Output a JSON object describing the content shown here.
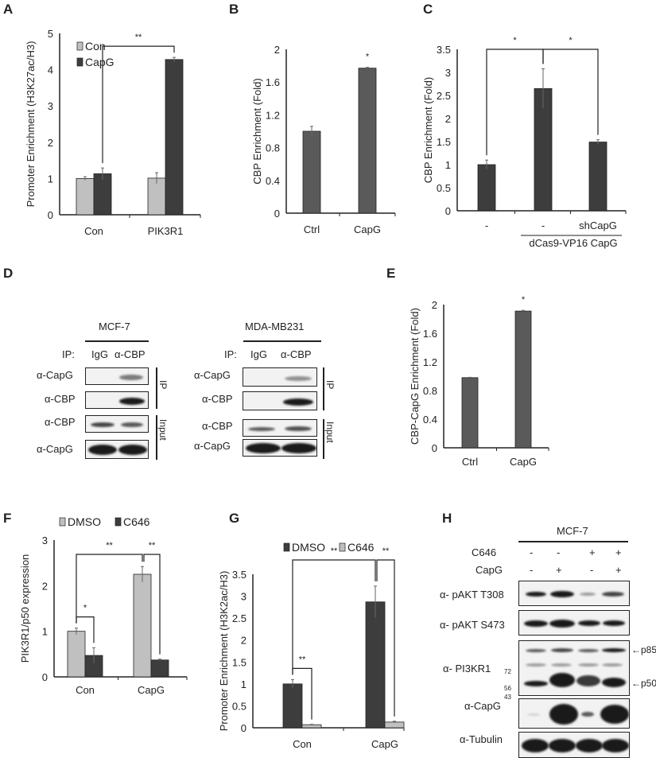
{
  "panel_labels": {
    "A": "A",
    "B": "B",
    "C": "C",
    "D": "D",
    "E": "E",
    "F": "F",
    "G": "G",
    "H": "H"
  },
  "chart_data": [
    {
      "id": "A",
      "type": "bar",
      "ylabel": "Promoter Enrichment (H3K27ac/H3)",
      "categories": [
        "Con",
        "PIK3R1"
      ],
      "ylim": [
        0,
        5
      ],
      "yticks": [
        "0",
        "1",
        "2",
        "3",
        "4",
        "5"
      ],
      "series": [
        {
          "name": "Con",
          "color": "#c0c0c0",
          "values": [
            1.0,
            1.01
          ],
          "errors": [
            0.05,
            0.15
          ]
        },
        {
          "name": "CapG",
          "color": "#3d3d3d",
          "values": [
            1.13,
            4.28
          ],
          "errors": [
            0.16,
            0.06
          ]
        }
      ],
      "legend": "top-left",
      "significance": [
        {
          "from": [
            1,
            0
          ],
          "to": [
            1,
            1
          ],
          "label": "**"
        }
      ]
    },
    {
      "id": "B",
      "type": "bar",
      "ylabel": "CBP Enrichment (Fold)",
      "categories": [
        "Ctrl",
        "CapG"
      ],
      "ylim": [
        0,
        2
      ],
      "yticks": [
        "0",
        "0.4",
        "0.8",
        "1.2",
        "1.6",
        "2"
      ],
      "series": [
        {
          "name": "CBP",
          "color": "#5a5a5a",
          "values": [
            1.0,
            1.77
          ],
          "errors": [
            0.06,
            0.01
          ]
        }
      ],
      "annotations": [
        {
          "bar": 1,
          "label": "*"
        }
      ]
    },
    {
      "id": "C",
      "type": "bar",
      "ylabel": "CBP Enrichment (Fold)",
      "categories": [
        "-",
        "-",
        "shCapG"
      ],
      "group_label": "dCas9-VP16 CapG",
      "ylim": [
        0,
        3.5
      ],
      "yticks": [
        "0",
        "0.5",
        "1",
        "1.5",
        "2",
        "2.5",
        "3",
        "3.5"
      ],
      "series": [
        {
          "name": "CBP",
          "color": "#3d3d3d",
          "values": [
            1.0,
            2.65,
            1.49
          ],
          "errors": [
            0.1,
            0.43,
            0.05
          ]
        }
      ],
      "significance": [
        {
          "from": [
            0,
            0
          ],
          "to": [
            0,
            1
          ],
          "label": "*"
        },
        {
          "from": [
            0,
            1
          ],
          "to": [
            0,
            2
          ],
          "label": "*"
        }
      ]
    },
    {
      "id": "E",
      "type": "bar",
      "ylabel": "CBP-CapG Enrichment (Fold)",
      "categories": [
        "Ctrl",
        "CapG"
      ],
      "ylim": [
        0,
        2
      ],
      "yticks": [
        "0",
        "0.4",
        "0.8",
        "1.2",
        "1.6",
        "2"
      ],
      "series": [
        {
          "name": "CBP-CapG",
          "color": "#5a5a5a",
          "values": [
            0.98,
            1.91
          ],
          "errors": [
            0.005,
            0.01
          ]
        }
      ],
      "annotations": [
        {
          "bar": 1,
          "label": "*"
        }
      ]
    },
    {
      "id": "F",
      "type": "bar",
      "ylabel": "PIK3R1/p50 expression",
      "categories": [
        "Con",
        "CapG"
      ],
      "ylim": [
        0,
        3
      ],
      "yticks": [
        "0",
        "1",
        "2",
        "3"
      ],
      "series": [
        {
          "name": "DMSO",
          "color": "#c0c0c0",
          "values": [
            1.0,
            2.25
          ],
          "errors": [
            0.07,
            0.17
          ]
        },
        {
          "name": "C646",
          "color": "#3d3d3d",
          "values": [
            0.47,
            0.37
          ],
          "errors": [
            0.17,
            0.02
          ]
        }
      ],
      "legend": "top",
      "significance": [
        {
          "from": [
            0,
            0
          ],
          "to": [
            1,
            0
          ],
          "label": "*"
        },
        {
          "from": [
            0,
            1
          ],
          "to": [
            1,
            1
          ],
          "label": "**"
        },
        {
          "from": [
            0,
            0
          ],
          "to": [
            0,
            1
          ],
          "label": "**"
        }
      ]
    },
    {
      "id": "G",
      "type": "bar",
      "ylabel": "Promoter Enrichment (H3K2ac/H3)",
      "categories": [
        "Con",
        "CapG"
      ],
      "ylim": [
        0,
        3.5
      ],
      "yticks": [
        "0",
        "0.5",
        "1",
        "1.5",
        "2",
        "2.5",
        "3",
        "3.5"
      ],
      "series": [
        {
          "name": "DMSO",
          "color": "#3d3d3d",
          "values": [
            1.0,
            2.87
          ],
          "errors": [
            0.1,
            0.36
          ]
        },
        {
          "name": "C646",
          "color": "#c0c0c0",
          "values": [
            0.07,
            0.13
          ],
          "errors": [
            0.01,
            0.02
          ]
        }
      ],
      "legend": "top",
      "significance": [
        {
          "from": [
            0,
            0
          ],
          "to": [
            1,
            0
          ],
          "label": "**"
        },
        {
          "from": [
            0,
            1
          ],
          "to": [
            1,
            1
          ],
          "label": "**"
        },
        {
          "from": [
            0,
            0
          ],
          "to": [
            0,
            1
          ],
          "label": "**"
        }
      ]
    }
  ],
  "panel_D": {
    "cells": [
      {
        "title": "MCF-7"
      },
      {
        "title": "MDA-MB231"
      }
    ],
    "ip_label": "IP:",
    "lanes": [
      "IgG",
      "α-CBP"
    ],
    "rows": [
      "α-CapG",
      "α-CBP",
      "α-CBP",
      "α-CapG"
    ],
    "brackets": [
      "IP",
      "Input"
    ]
  },
  "panel_H": {
    "title": "MCF-7",
    "conditions": [
      {
        "name": "C646",
        "values": [
          "-",
          "-",
          "+",
          "+"
        ]
      },
      {
        "name": "CapG",
        "values": [
          "-",
          "+",
          "-",
          "+"
        ]
      }
    ],
    "rows": [
      "α- pAKT T308",
      "α- pAKT S473",
      "α- PI3KR1",
      "α-CapG",
      "α-Tubulin"
    ],
    "markers": [
      "72",
      "56",
      "43"
    ],
    "arrows": [
      "p85",
      "p50"
    ]
  }
}
